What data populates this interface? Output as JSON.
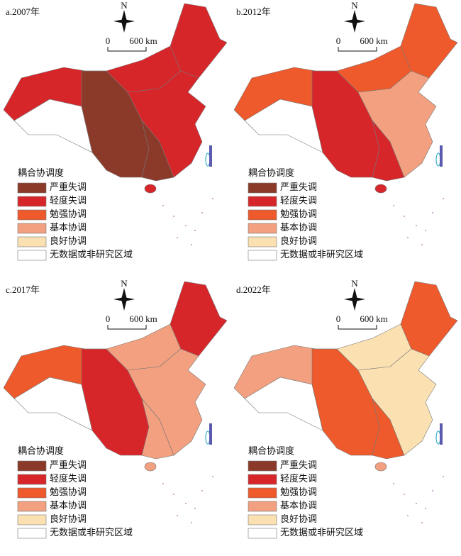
{
  "panels": [
    {
      "title": "a.2007年"
    },
    {
      "title": "b.2012年"
    },
    {
      "title": "c.2017年"
    },
    {
      "title": "d.2022年"
    }
  ],
  "north": "N",
  "scale": {
    "start": "0",
    "end": "600 km"
  },
  "legend": {
    "title": "耦合协调度",
    "items": [
      {
        "label": "严重失调",
        "color": "#8b3a2a"
      },
      {
        "label": "轻度失调",
        "color": "#d7262a"
      },
      {
        "label": "勉强协调",
        "color": "#ee5a2c"
      },
      {
        "label": "基本协调",
        "color": "#f2a07f"
      },
      {
        "label": "良好协调",
        "color": "#fbe1b2"
      },
      {
        "label": "无数据或非研究区域",
        "color": "#ffffff"
      }
    ]
  }
}
